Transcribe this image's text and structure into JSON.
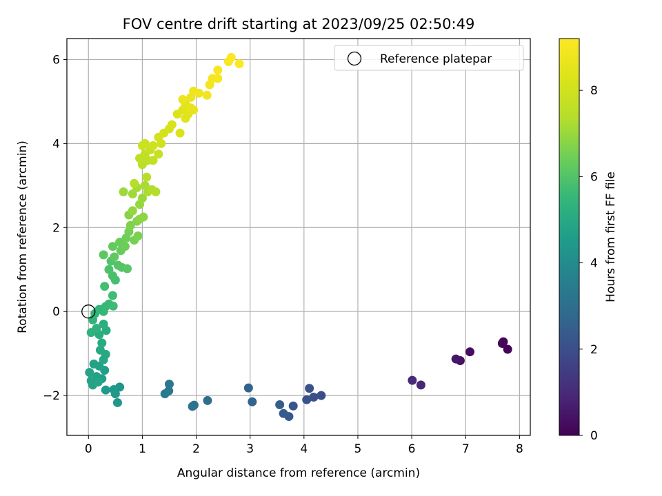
{
  "chart_data": {
    "type": "scatter",
    "title": "FOV centre drift starting at 2023/09/25 02:50:49",
    "xlabel": "Angular distance from reference (arcmin)",
    "ylabel": "Rotation from reference (arcmin)",
    "xlim": [
      -0.4,
      8.2
    ],
    "ylim": [
      -2.95,
      6.5
    ],
    "xticks": [
      "0",
      "1",
      "2",
      "3",
      "4",
      "5",
      "6",
      "7",
      "8"
    ],
    "yticks": [
      "−2",
      "0",
      "2",
      "4",
      "6"
    ],
    "grid": true,
    "legend": {
      "placement": "top-right",
      "entries": [
        "Reference platepar"
      ]
    },
    "reference_point": {
      "x": 0,
      "y": 0,
      "label": "Reference platepar"
    },
    "colorbar": {
      "label": "Hours from first FF file",
      "range": [
        0,
        9.2
      ],
      "ticks": [
        "0",
        "2",
        "4",
        "6",
        "8"
      ],
      "colormap": "viridis"
    },
    "points": [
      {
        "x": 7.78,
        "y": -0.9,
        "h": 0.05
      },
      {
        "x": 7.7,
        "y": -0.72,
        "h": 0.1
      },
      {
        "x": 7.68,
        "y": -0.76,
        "h": 0.15
      },
      {
        "x": 7.08,
        "y": -0.96,
        "h": 0.3
      },
      {
        "x": 6.9,
        "y": -1.17,
        "h": 0.4
      },
      {
        "x": 6.82,
        "y": -1.13,
        "h": 0.5
      },
      {
        "x": 6.17,
        "y": -1.75,
        "h": 0.9
      },
      {
        "x": 6.01,
        "y": -1.64,
        "h": 1.0
      },
      {
        "x": 4.32,
        "y": -2.0,
        "h": 2.0
      },
      {
        "x": 4.18,
        "y": -2.04,
        "h": 2.05
      },
      {
        "x": 4.1,
        "y": -1.83,
        "h": 2.1
      },
      {
        "x": 4.05,
        "y": -2.1,
        "h": 2.15
      },
      {
        "x": 3.8,
        "y": -2.25,
        "h": 2.2
      },
      {
        "x": 3.72,
        "y": -2.5,
        "h": 2.3
      },
      {
        "x": 3.62,
        "y": -2.43,
        "h": 2.35
      },
      {
        "x": 3.55,
        "y": -2.22,
        "h": 2.4
      },
      {
        "x": 3.04,
        "y": -2.15,
        "h": 2.6
      },
      {
        "x": 2.97,
        "y": -1.82,
        "h": 2.65
      },
      {
        "x": 2.21,
        "y": -2.12,
        "h": 3.0
      },
      {
        "x": 1.96,
        "y": -2.23,
        "h": 3.1
      },
      {
        "x": 1.93,
        "y": -2.26,
        "h": 3.15
      },
      {
        "x": 1.5,
        "y": -1.73,
        "h": 3.3
      },
      {
        "x": 1.49,
        "y": -1.89,
        "h": 3.35
      },
      {
        "x": 1.42,
        "y": -1.96,
        "h": 3.4
      },
      {
        "x": 0.58,
        "y": -1.8,
        "h": 4.3
      },
      {
        "x": 0.54,
        "y": -2.17,
        "h": 4.35
      },
      {
        "x": 0.5,
        "y": -1.96,
        "h": 4.4
      },
      {
        "x": 0.47,
        "y": -1.86,
        "h": 4.45
      },
      {
        "x": 0.32,
        "y": -1.87,
        "h": 4.5
      },
      {
        "x": 0.25,
        "y": -1.6,
        "h": 4.6
      },
      {
        "x": 0.3,
        "y": -1.4,
        "h": 4.65
      },
      {
        "x": 0.2,
        "y": -1.3,
        "h": 4.7
      },
      {
        "x": 0.15,
        "y": -1.55,
        "h": 4.72
      },
      {
        "x": 0.1,
        "y": -1.25,
        "h": 4.75
      },
      {
        "x": 0.08,
        "y": -1.75,
        "h": 4.78
      },
      {
        "x": 0.05,
        "y": -1.65,
        "h": 4.8
      },
      {
        "x": 0.02,
        "y": -1.45,
        "h": 4.82
      },
      {
        "x": 0.18,
        "y": -1.68,
        "h": 4.85
      },
      {
        "x": 0.28,
        "y": -1.15,
        "h": 4.9
      },
      {
        "x": 0.32,
        "y": -1.02,
        "h": 4.95
      },
      {
        "x": 0.22,
        "y": -0.92,
        "h": 5.0
      },
      {
        "x": 0.25,
        "y": -0.75,
        "h": 5.05
      },
      {
        "x": 0.2,
        "y": -0.55,
        "h": 5.1
      },
      {
        "x": 0.33,
        "y": -0.45,
        "h": 5.15
      },
      {
        "x": 0.28,
        "y": -0.3,
        "h": 5.2
      },
      {
        "x": 0.15,
        "y": -0.4,
        "h": 5.25
      },
      {
        "x": 0.05,
        "y": -0.5,
        "h": 5.3
      },
      {
        "x": 0.08,
        "y": -0.2,
        "h": 5.35
      },
      {
        "x": 0.12,
        "y": -0.05,
        "h": 5.4
      },
      {
        "x": 0.2,
        "y": 0.05,
        "h": 5.45
      },
      {
        "x": 0.28,
        "y": 0.0,
        "h": 5.5
      },
      {
        "x": 0.32,
        "y": 0.12,
        "h": 5.55
      },
      {
        "x": 0.38,
        "y": 0.18,
        "h": 5.6
      },
      {
        "x": 0.46,
        "y": 0.13,
        "h": 5.65
      },
      {
        "x": 0.45,
        "y": 0.38,
        "h": 5.7
      },
      {
        "x": 0.3,
        "y": 0.6,
        "h": 5.75
      },
      {
        "x": 0.5,
        "y": 0.75,
        "h": 5.8
      },
      {
        "x": 0.45,
        "y": 0.85,
        "h": 5.85
      },
      {
        "x": 0.38,
        "y": 1.0,
        "h": 5.9
      },
      {
        "x": 0.42,
        "y": 1.2,
        "h": 5.95
      },
      {
        "x": 0.55,
        "y": 1.1,
        "h": 6.0
      },
      {
        "x": 0.62,
        "y": 1.05,
        "h": 6.05
      },
      {
        "x": 0.72,
        "y": 1.02,
        "h": 6.1
      },
      {
        "x": 0.28,
        "y": 1.35,
        "h": 6.15
      },
      {
        "x": 0.48,
        "y": 1.3,
        "h": 6.2
      },
      {
        "x": 0.45,
        "y": 1.55,
        "h": 6.25
      },
      {
        "x": 0.6,
        "y": 1.45,
        "h": 6.3
      },
      {
        "x": 0.58,
        "y": 1.65,
        "h": 6.35
      },
      {
        "x": 0.68,
        "y": 1.55,
        "h": 6.4
      },
      {
        "x": 0.7,
        "y": 1.75,
        "h": 6.45
      },
      {
        "x": 0.75,
        "y": 1.9,
        "h": 6.5
      },
      {
        "x": 0.85,
        "y": 1.7,
        "h": 6.55
      },
      {
        "x": 0.92,
        "y": 1.8,
        "h": 6.6
      },
      {
        "x": 0.78,
        "y": 2.05,
        "h": 6.65
      },
      {
        "x": 0.9,
        "y": 2.15,
        "h": 6.7
      },
      {
        "x": 0.75,
        "y": 2.3,
        "h": 6.75
      },
      {
        "x": 0.95,
        "y": 2.2,
        "h": 6.8
      },
      {
        "x": 1.02,
        "y": 2.25,
        "h": 6.85
      },
      {
        "x": 0.82,
        "y": 2.4,
        "h": 6.9
      },
      {
        "x": 0.95,
        "y": 2.55,
        "h": 6.95
      },
      {
        "x": 1.0,
        "y": 2.7,
        "h": 7.0
      },
      {
        "x": 0.65,
        "y": 2.85,
        "h": 7.05
      },
      {
        "x": 0.82,
        "y": 2.8,
        "h": 7.1
      },
      {
        "x": 0.9,
        "y": 2.95,
        "h": 7.15
      },
      {
        "x": 1.05,
        "y": 3.0,
        "h": 7.2
      },
      {
        "x": 1.1,
        "y": 2.85,
        "h": 7.25
      },
      {
        "x": 1.18,
        "y": 2.9,
        "h": 7.3
      },
      {
        "x": 1.25,
        "y": 2.85,
        "h": 7.35
      },
      {
        "x": 0.85,
        "y": 3.05,
        "h": 7.4
      },
      {
        "x": 1.08,
        "y": 3.2,
        "h": 7.45
      },
      {
        "x": 1.0,
        "y": 3.5,
        "h": 7.5
      },
      {
        "x": 1.1,
        "y": 3.6,
        "h": 7.55
      },
      {
        "x": 0.95,
        "y": 3.65,
        "h": 7.6
      },
      {
        "x": 1.05,
        "y": 3.75,
        "h": 7.65
      },
      {
        "x": 1.2,
        "y": 3.6,
        "h": 7.7
      },
      {
        "x": 1.3,
        "y": 3.75,
        "h": 7.75
      },
      {
        "x": 1.15,
        "y": 3.85,
        "h": 7.8
      },
      {
        "x": 1.0,
        "y": 3.95,
        "h": 7.85
      },
      {
        "x": 1.05,
        "y": 4.0,
        "h": 7.9
      },
      {
        "x": 1.2,
        "y": 3.95,
        "h": 7.95
      },
      {
        "x": 1.35,
        "y": 4.0,
        "h": 8.0
      },
      {
        "x": 1.3,
        "y": 4.15,
        "h": 8.05
      },
      {
        "x": 1.4,
        "y": 4.25,
        "h": 8.1
      },
      {
        "x": 1.5,
        "y": 4.35,
        "h": 8.15
      },
      {
        "x": 1.55,
        "y": 4.45,
        "h": 8.2
      },
      {
        "x": 1.7,
        "y": 4.25,
        "h": 8.25
      },
      {
        "x": 1.65,
        "y": 4.7,
        "h": 8.3
      },
      {
        "x": 1.75,
        "y": 4.8,
        "h": 8.35
      },
      {
        "x": 1.8,
        "y": 4.6,
        "h": 8.4
      },
      {
        "x": 1.85,
        "y": 4.7,
        "h": 8.45
      },
      {
        "x": 1.8,
        "y": 4.95,
        "h": 8.5
      },
      {
        "x": 1.9,
        "y": 4.85,
        "h": 8.55
      },
      {
        "x": 1.95,
        "y": 4.8,
        "h": 8.6
      },
      {
        "x": 1.75,
        "y": 5.05,
        "h": 8.65
      },
      {
        "x": 1.9,
        "y": 5.1,
        "h": 8.7
      },
      {
        "x": 1.95,
        "y": 5.25,
        "h": 8.75
      },
      {
        "x": 2.05,
        "y": 5.2,
        "h": 8.8
      },
      {
        "x": 2.2,
        "y": 5.15,
        "h": 8.85
      },
      {
        "x": 2.25,
        "y": 5.4,
        "h": 8.9
      },
      {
        "x": 2.3,
        "y": 5.55,
        "h": 8.95
      },
      {
        "x": 2.4,
        "y": 5.55,
        "h": 9.0
      },
      {
        "x": 2.4,
        "y": 5.75,
        "h": 9.05
      },
      {
        "x": 2.6,
        "y": 5.95,
        "h": 9.1
      },
      {
        "x": 2.65,
        "y": 6.05,
        "h": 9.15
      },
      {
        "x": 2.8,
        "y": 5.9,
        "h": 9.2
      }
    ]
  }
}
